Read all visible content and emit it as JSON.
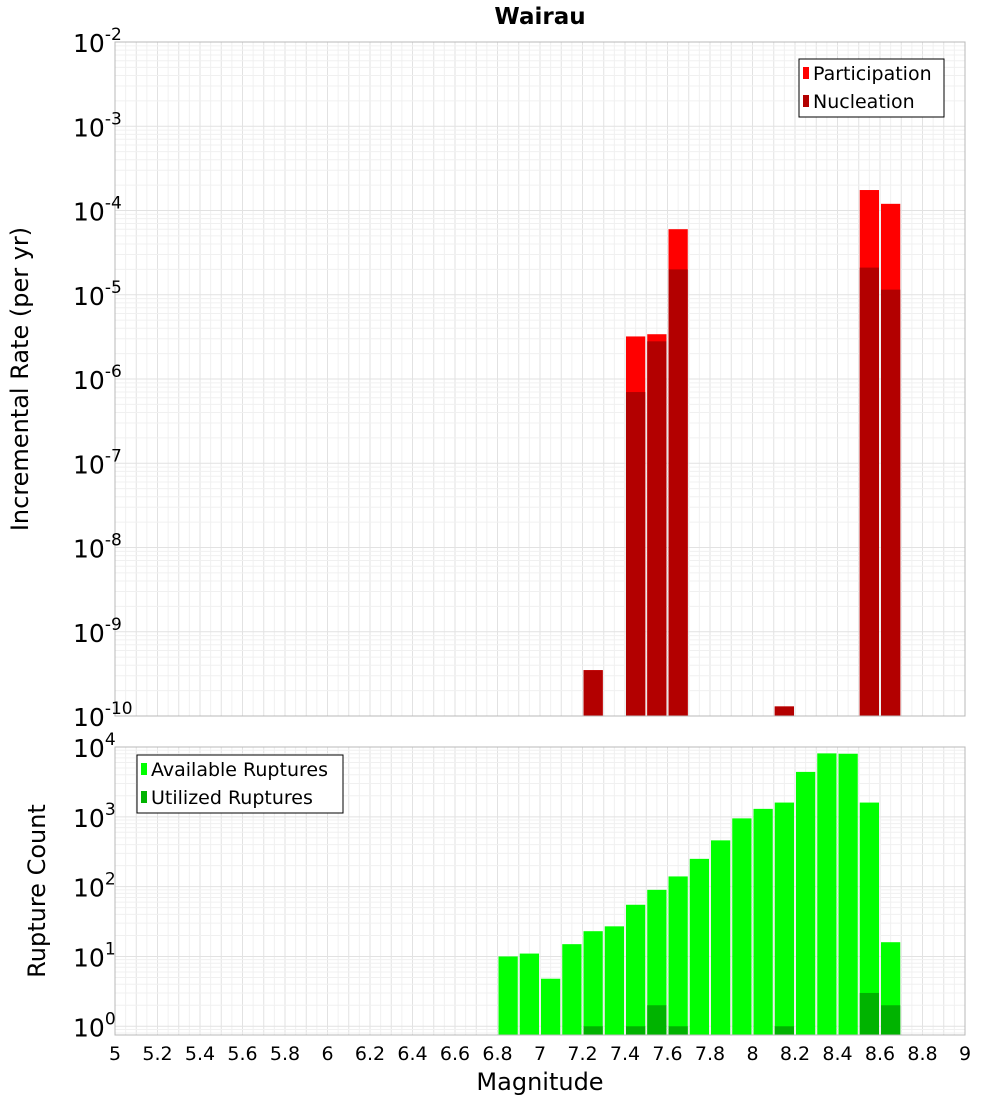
{
  "chart_data": [
    {
      "type": "bar",
      "title": "Wairau",
      "ylabel": "Incremental Rate (per yr)",
      "xlabel": "",
      "xlim": [
        5,
        9
      ],
      "ylim": [
        1e-10,
        0.01
      ],
      "yscale": "log",
      "grid": true,
      "legend_position": "top-right",
      "bin_width": 0.1,
      "series": [
        {
          "name": "Participation",
          "color": "#ff0000",
          "x": [
            7.25,
            7.45,
            7.55,
            7.65,
            8.15,
            8.55,
            8.65
          ],
          "values": [
            3.5e-10,
            3.2e-06,
            3.4e-06,
            6e-05,
            1.3e-10,
            0.000175,
            0.00012
          ]
        },
        {
          "name": "Nucleation",
          "color": "#b30000",
          "x": [
            7.25,
            7.45,
            7.55,
            7.65,
            8.15,
            8.55,
            8.65
          ],
          "values": [
            3.5e-10,
            7e-07,
            2.8e-06,
            2e-05,
            1.3e-10,
            2.1e-05,
            1.15e-05
          ]
        }
      ]
    },
    {
      "type": "bar",
      "title": "",
      "ylabel": "Rupture Count",
      "xlabel": "Magnitude",
      "xlim": [
        5,
        9
      ],
      "ylim": [
        0.75,
        10000
      ],
      "yscale": "log",
      "grid": true,
      "legend_position": "top-left",
      "bin_width": 0.1,
      "xticks": [
        "5",
        "5.2",
        "5.4",
        "5.6",
        "5.8",
        "6",
        "6.2",
        "6.4",
        "6.6",
        "6.8",
        "7",
        "7.2",
        "7.4",
        "7.6",
        "7.8",
        "8",
        "8.2",
        "8.4",
        "8.6",
        "8.8",
        "9"
      ],
      "series": [
        {
          "name": "Available Ruptures",
          "color": "#00ff00",
          "x": [
            6.85,
            6.95,
            7.05,
            7.15,
            7.25,
            7.35,
            7.45,
            7.55,
            7.65,
            7.75,
            7.85,
            7.95,
            8.05,
            8.15,
            8.25,
            8.35,
            8.45,
            8.55,
            8.65
          ],
          "values": [
            10,
            11,
            4.8,
            15,
            23,
            27,
            55,
            90,
            140,
            250,
            460,
            950,
            1300,
            1600,
            4400,
            8100,
            8000,
            1600,
            16
          ]
        },
        {
          "name": "Utilized Ruptures",
          "color": "#00b300",
          "x": [
            7.25,
            7.45,
            7.55,
            7.65,
            8.15,
            8.55,
            8.65
          ],
          "values": [
            1,
            1,
            2,
            1,
            1,
            3,
            2
          ]
        }
      ]
    }
  ]
}
